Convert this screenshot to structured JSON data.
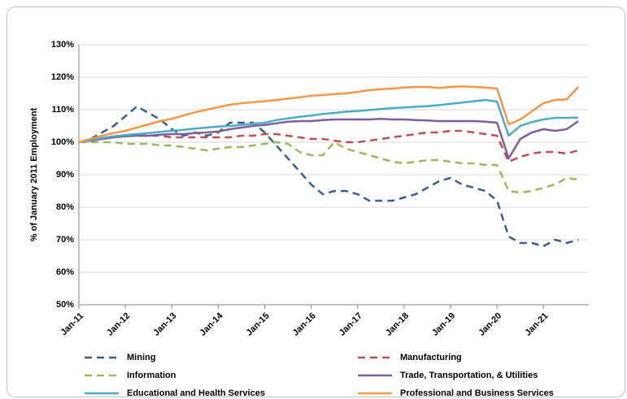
{
  "chart_data": {
    "type": "line",
    "y_label": "% of January 2011 Employment",
    "categories": [
      "Jan-11",
      null,
      null,
      null,
      "Jan-12",
      null,
      null,
      null,
      "Jan-13",
      null,
      null,
      null,
      "Jan-14",
      null,
      null,
      null,
      "Jan-15",
      null,
      null,
      null,
      "Jan-16",
      null,
      null,
      null,
      "Jan-17",
      null,
      null,
      null,
      "Jan-18",
      null,
      null,
      null,
      "Jan-19",
      null,
      null,
      null,
      "Jan-20",
      null,
      null,
      null,
      "Jan-21",
      null,
      null,
      null
    ],
    "ylim": [
      50,
      130
    ],
    "yticks": [
      {
        "value": 50,
        "label": "50%"
      },
      {
        "value": 60,
        "label": "60%"
      },
      {
        "value": 70,
        "label": "70%"
      },
      {
        "value": 80,
        "label": "80%"
      },
      {
        "value": 90,
        "label": "90%"
      },
      {
        "value": 100,
        "label": "100%"
      },
      {
        "value": 110,
        "label": "110%"
      },
      {
        "value": 120,
        "label": "120%"
      },
      {
        "value": 130,
        "label": "130%"
      }
    ],
    "grid": true,
    "legend": "bottom",
    "series": [
      {
        "name": "Mining",
        "color": "#366092",
        "style": "dashed",
        "values": [
          100,
          101,
          103,
          105,
          108,
          111,
          109,
          107,
          104,
          102,
          103,
          102,
          103,
          106,
          106,
          106,
          103,
          99,
          95,
          91,
          87,
          84,
          85,
          85,
          84,
          82,
          82,
          82,
          83,
          84,
          86,
          88,
          89,
          87,
          86,
          85,
          82,
          71,
          69,
          69,
          68,
          70,
          69,
          70
        ]
      },
      {
        "name": "Manufacturing",
        "color": "#c0504d",
        "style": "dashed",
        "values": [
          100,
          100.5,
          101,
          101.5,
          102,
          102,
          102,
          102,
          101.5,
          101.5,
          101.5,
          101.5,
          101.5,
          101.5,
          102,
          102,
          102.5,
          102.5,
          102,
          101.5,
          101,
          101,
          100.5,
          100,
          100,
          100.5,
          101,
          101.5,
          102,
          102.5,
          103,
          103,
          103.5,
          103.5,
          103,
          102.5,
          102,
          94,
          95.5,
          96.5,
          97,
          97,
          96.5,
          97.5
        ]
      },
      {
        "name": "Information",
        "color": "#9bbb59",
        "style": "dashed",
        "values": [
          100,
          100,
          100,
          100,
          99.5,
          99.5,
          99.5,
          99,
          99,
          98.5,
          98,
          97.5,
          98,
          98.5,
          98.5,
          99,
          99.5,
          100,
          99.5,
          97,
          96,
          96,
          100,
          98,
          97,
          96,
          95,
          94,
          93.5,
          94,
          94.5,
          94.5,
          94,
          93.5,
          93.5,
          93,
          93,
          85,
          84.5,
          85,
          86,
          87,
          89,
          88.5
        ]
      },
      {
        "name": "Trade, Transportation, & Utilities",
        "color": "#7f5fa0",
        "style": "solid",
        "values": [
          100,
          100.5,
          101,
          101.5,
          101.8,
          102,
          102,
          102.3,
          102.5,
          102.5,
          102.8,
          103,
          103.3,
          104,
          104.5,
          105,
          105.3,
          105.8,
          106.3,
          106.5,
          106.5,
          106.8,
          107,
          107,
          107,
          107,
          107.2,
          107,
          107,
          106.8,
          106.7,
          106.5,
          106.5,
          106.5,
          106.5,
          106.3,
          106,
          95,
          101,
          103,
          104,
          103.5,
          104,
          106.5
        ]
      },
      {
        "name": "Educational and Health Services",
        "color": "#4bacc6",
        "style": "solid",
        "values": [
          100,
          100.7,
          101.3,
          101.8,
          102.2,
          102.5,
          102.8,
          103.2,
          103.5,
          103.8,
          104.2,
          104.5,
          104.8,
          105,
          105.3,
          105.7,
          106,
          106.8,
          107.3,
          107.8,
          108.2,
          108.7,
          109,
          109.4,
          109.6,
          109.9,
          110.2,
          110.5,
          110.7,
          110.9,
          111.1,
          111.4,
          111.8,
          112.2,
          112.6,
          113,
          112.5,
          102,
          105,
          106.2,
          107,
          107.5,
          107.5,
          107.6
        ]
      },
      {
        "name": "Professional and Business Services",
        "color": "#f79646",
        "style": "solid",
        "values": [
          100,
          101,
          102,
          102.8,
          103.5,
          104.5,
          105.5,
          106.5,
          107.2,
          108.2,
          109.2,
          110,
          110.8,
          111.5,
          112,
          112.3,
          112.6,
          113,
          113.4,
          113.8,
          114.3,
          114.5,
          114.8,
          115,
          115.5,
          116,
          116.3,
          116.5,
          116.8,
          117,
          117,
          116.7,
          117,
          117.2,
          117,
          116.8,
          116.5,
          105.5,
          107,
          109.5,
          112,
          113,
          113.2,
          117
        ]
      }
    ]
  }
}
